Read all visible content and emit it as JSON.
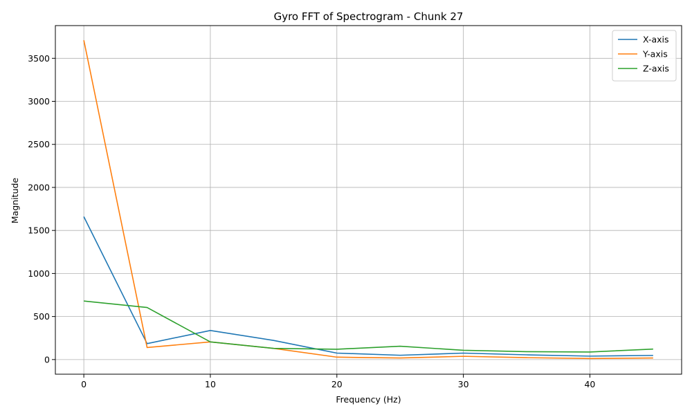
{
  "chart_data": {
    "type": "line",
    "title": "Gyro FFT of Spectrogram - Chunk 27",
    "xlabel": "Frequency (Hz)",
    "ylabel": "Magnitude",
    "xlim": [
      -2.25,
      47.25
    ],
    "ylim": [
      -170,
      3880
    ],
    "xticks": [
      0,
      10,
      20,
      30,
      40
    ],
    "yticks": [
      0,
      500,
      1000,
      1500,
      2000,
      2500,
      3000,
      3500
    ],
    "grid": true,
    "legend_position": "top-right",
    "x": [
      0,
      5,
      10,
      15,
      20,
      25,
      30,
      35,
      40,
      45
    ],
    "series": [
      {
        "name": "X-axis",
        "color": "#1f77b4",
        "values": [
          1660,
          185,
          338,
          222,
          75,
          50,
          75,
          55,
          40,
          48
        ]
      },
      {
        "name": "Y-axis",
        "color": "#ff7f0e",
        "values": [
          3710,
          140,
          205,
          130,
          28,
          18,
          38,
          22,
          12,
          18
        ]
      },
      {
        "name": "Z-axis",
        "color": "#2ca02c",
        "values": [
          680,
          605,
          205,
          130,
          120,
          155,
          108,
          92,
          88,
          122
        ]
      }
    ]
  }
}
